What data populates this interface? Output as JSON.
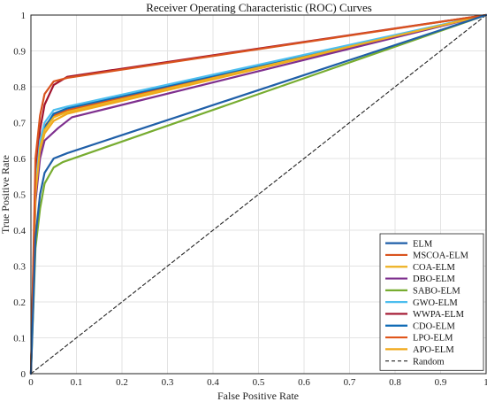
{
  "chart_data": {
    "type": "line",
    "title": "Receiver Operating Characteristic (ROC) Curves",
    "xlabel": "False Positive Rate",
    "ylabel": "True Positive Rate",
    "xlim": [
      0,
      1
    ],
    "ylim": [
      0,
      1
    ],
    "xticks": [
      "0",
      "0.1",
      "0.2",
      "0.3",
      "0.4",
      "0.5",
      "0.6",
      "0.7",
      "0.8",
      "0.9",
      "1"
    ],
    "yticks": [
      "0",
      "0.1",
      "0.2",
      "0.3",
      "0.4",
      "0.5",
      "0.6",
      "0.7",
      "0.8",
      "0.9",
      "1"
    ],
    "grid": true,
    "legend_position": "bottom-right",
    "series": [
      {
        "name": "ELM",
        "color": "#1f5fa8",
        "dashed": false,
        "points": [
          [
            0,
            0
          ],
          [
            0.01,
            0.38
          ],
          [
            0.02,
            0.5
          ],
          [
            0.03,
            0.56
          ],
          [
            0.05,
            0.6
          ],
          [
            0.08,
            0.615
          ],
          [
            1,
            1
          ]
        ]
      },
      {
        "name": "MSCOA-ELM",
        "color": "#d9531e",
        "dashed": false,
        "points": [
          [
            0,
            0
          ],
          [
            0.01,
            0.6
          ],
          [
            0.02,
            0.72
          ],
          [
            0.03,
            0.78
          ],
          [
            0.05,
            0.815
          ],
          [
            0.08,
            0.825
          ],
          [
            1,
            1
          ]
        ]
      },
      {
        "name": "COA-ELM",
        "color": "#edb120",
        "dashed": false,
        "points": [
          [
            0,
            0
          ],
          [
            0.01,
            0.5
          ],
          [
            0.02,
            0.63
          ],
          [
            0.03,
            0.68
          ],
          [
            0.05,
            0.715
          ],
          [
            0.08,
            0.73
          ],
          [
            1,
            1
          ]
        ]
      },
      {
        "name": "DBO-ELM",
        "color": "#7e2f8e",
        "dashed": false,
        "points": [
          [
            0,
            0
          ],
          [
            0.01,
            0.48
          ],
          [
            0.02,
            0.6
          ],
          [
            0.03,
            0.65
          ],
          [
            0.06,
            0.685
          ],
          [
            0.09,
            0.715
          ],
          [
            1,
            1
          ]
        ]
      },
      {
        "name": "SABO-ELM",
        "color": "#77ac30",
        "dashed": false,
        "points": [
          [
            0,
            0
          ],
          [
            0.01,
            0.35
          ],
          [
            0.02,
            0.46
          ],
          [
            0.03,
            0.53
          ],
          [
            0.05,
            0.575
          ],
          [
            0.07,
            0.59
          ],
          [
            1,
            1
          ]
        ]
      },
      {
        "name": "GWO-ELM",
        "color": "#4dbeee",
        "dashed": false,
        "points": [
          [
            0,
            0
          ],
          [
            0.01,
            0.52
          ],
          [
            0.02,
            0.65
          ],
          [
            0.03,
            0.7
          ],
          [
            0.05,
            0.735
          ],
          [
            0.08,
            0.745
          ],
          [
            1,
            1
          ]
        ]
      },
      {
        "name": "WWPA-ELM",
        "color": "#a2142f",
        "dashed": false,
        "points": [
          [
            0,
            0
          ],
          [
            0.01,
            0.55
          ],
          [
            0.02,
            0.68
          ],
          [
            0.03,
            0.75
          ],
          [
            0.05,
            0.805
          ],
          [
            0.08,
            0.828
          ],
          [
            1,
            1
          ]
        ]
      },
      {
        "name": "CDO-ELM",
        "color": "#0e6ab5",
        "dashed": false,
        "points": [
          [
            0,
            0
          ],
          [
            0.01,
            0.5
          ],
          [
            0.02,
            0.63
          ],
          [
            0.03,
            0.685
          ],
          [
            0.05,
            0.725
          ],
          [
            0.08,
            0.74
          ],
          [
            1,
            1
          ]
        ]
      },
      {
        "name": "LPO-ELM",
        "color": "#e0561b",
        "dashed": false,
        "points": [
          [
            0,
            0
          ],
          [
            0.01,
            0.51
          ],
          [
            0.02,
            0.64
          ],
          [
            0.03,
            0.69
          ],
          [
            0.05,
            0.72
          ],
          [
            0.08,
            0.735
          ],
          [
            1,
            1
          ]
        ]
      },
      {
        "name": "APO-ELM",
        "color": "#f0a81a",
        "dashed": false,
        "points": [
          [
            0,
            0
          ],
          [
            0.01,
            0.49
          ],
          [
            0.02,
            0.62
          ],
          [
            0.03,
            0.67
          ],
          [
            0.05,
            0.705
          ],
          [
            0.08,
            0.725
          ],
          [
            1,
            1
          ]
        ]
      },
      {
        "name": "Random",
        "color": "#222222",
        "dashed": true,
        "points": [
          [
            0,
            0
          ],
          [
            1,
            1
          ]
        ]
      }
    ]
  }
}
